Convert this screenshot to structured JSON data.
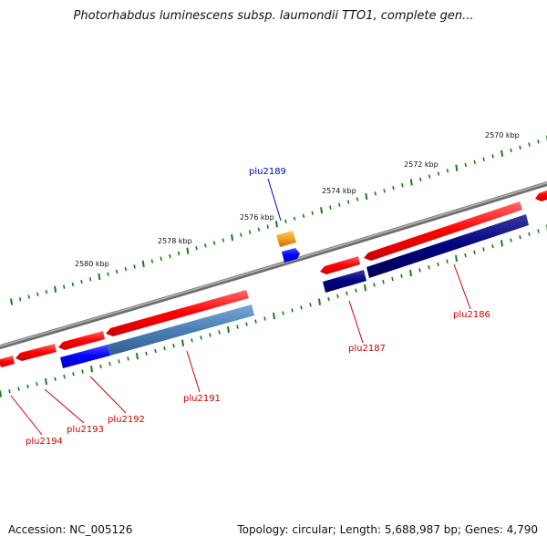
{
  "title": "Photorhabdus luminescens subsp. laumondii TTO1, complete gen...",
  "footer": {
    "accession": "Accession: NC_005126",
    "summary": "Topology: circular; Length: 5,688,987 bp; Genes: 4,790"
  },
  "colors": {
    "backbone": "#808080",
    "tick": "#1a7a1a",
    "gene_red": "#ff0000",
    "gene_blue": "#0000ff",
    "gene_navy": "#000080",
    "gene_steel": "#4a7fb5",
    "gene_orange": "#f0a020",
    "label_red": "#cc0000",
    "label_blue": "#0000cc"
  },
  "kbp_labels": [
    "2570 kbp",
    "2572 kbp",
    "2574 kbp",
    "2576 kbp",
    "2578 kbp",
    "2580 kbp"
  ],
  "gene_labels": {
    "plu2189": "plu2189",
    "plu2186": "plu2186",
    "plu2187": "plu2187",
    "plu2191": "plu2191",
    "plu2192": "plu2192",
    "plu2193": "plu2193",
    "plu2194": "plu2194"
  }
}
